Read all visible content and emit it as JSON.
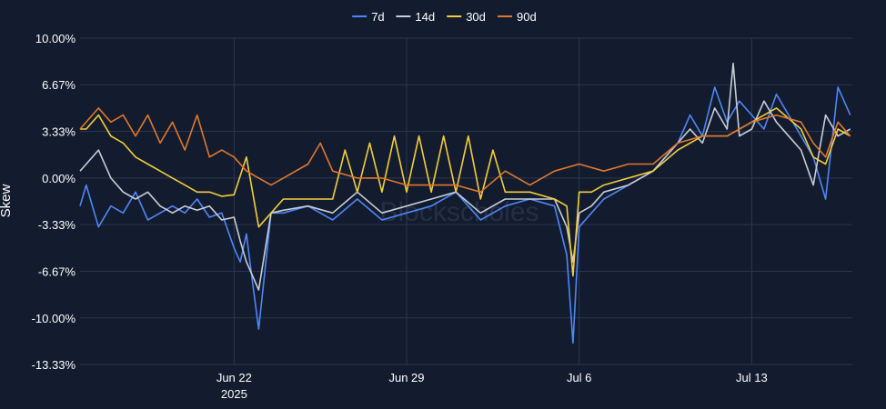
{
  "chart_data": {
    "type": "line",
    "xlabel": "",
    "ylabel": "Skew",
    "watermark": "Blockscholes",
    "y_unit": "%",
    "ylim": [
      -13.33,
      10.0
    ],
    "xlim": [
      "2025-06-15T18:00",
      "2025-07-17T02:00"
    ],
    "grid": true,
    "legend_position": "top-center",
    "y_ticks": [
      {
        "value": 10.0,
        "label": "10.00%"
      },
      {
        "value": 6.67,
        "label": "6.67%"
      },
      {
        "value": 3.33,
        "label": "3.33%"
      },
      {
        "value": 0.0,
        "label": "0.00%"
      },
      {
        "value": -3.33,
        "label": "-3.33%"
      },
      {
        "value": -6.67,
        "label": "-6.67%"
      },
      {
        "value": -10.0,
        "label": "-10.00%"
      },
      {
        "value": -13.33,
        "label": "-13.33%"
      }
    ],
    "x_ticks": [
      {
        "value": "2025-06-22",
        "label": "Jun 22",
        "sublabel": "2025"
      },
      {
        "value": "2025-06-29",
        "label": "Jun 29",
        "sublabel": ""
      },
      {
        "value": "2025-07-06",
        "label": "Jul 6",
        "sublabel": ""
      },
      {
        "value": "2025-07-13",
        "label": "Jul 13",
        "sublabel": ""
      }
    ],
    "series": [
      {
        "name": "7d",
        "color": "#4f86f7",
        "x": [
          "2025-06-15T18:00",
          "2025-06-16T00:00",
          "2025-06-16T12:00",
          "2025-06-17T00:00",
          "2025-06-17T12:00",
          "2025-06-18T00:00",
          "2025-06-18T12:00",
          "2025-06-19T00:00",
          "2025-06-19T12:00",
          "2025-06-20T00:00",
          "2025-06-20T12:00",
          "2025-06-21T00:00",
          "2025-06-21T12:00",
          "2025-06-22T00:00",
          "2025-06-22T06:00",
          "2025-06-22T12:00",
          "2025-06-22T18:00",
          "2025-06-23T00:00",
          "2025-06-23T12:00",
          "2025-06-24T00:00",
          "2025-06-25T00:00",
          "2025-06-26T00:00",
          "2025-06-27T00:00",
          "2025-06-28T00:00",
          "2025-06-29T00:00",
          "2025-06-30T00:00",
          "2025-07-01T00:00",
          "2025-07-02T00:00",
          "2025-07-03T00:00",
          "2025-07-04T00:00",
          "2025-07-05T00:00",
          "2025-07-05T12:00",
          "2025-07-05T18:00",
          "2025-07-06T00:00",
          "2025-07-06T12:00",
          "2025-07-07T00:00",
          "2025-07-08T00:00",
          "2025-07-09T00:00",
          "2025-07-10T00:00",
          "2025-07-10T12:00",
          "2025-07-11T00:00",
          "2025-07-11T12:00",
          "2025-07-12T00:00",
          "2025-07-12T12:00",
          "2025-07-13T00:00",
          "2025-07-13T12:00",
          "2025-07-14T00:00",
          "2025-07-14T12:00",
          "2025-07-15T00:00",
          "2025-07-15T12:00",
          "2025-07-16T00:00",
          "2025-07-16T12:00",
          "2025-07-17T00:00"
        ],
        "values": [
          -2.0,
          -0.5,
          -3.5,
          -2.0,
          -2.5,
          -1.0,
          -3.0,
          -2.5,
          -2.0,
          -2.5,
          -1.5,
          -2.8,
          -2.5,
          -5.0,
          -6.0,
          -4.0,
          -7.5,
          -10.8,
          -2.5,
          -2.5,
          -2.0,
          -3.0,
          -1.5,
          -3.0,
          -2.5,
          -2.0,
          -1.0,
          -3.0,
          -2.0,
          -1.5,
          -2.0,
          -5.5,
          -11.8,
          -3.5,
          -2.5,
          -1.5,
          -0.5,
          0.5,
          2.5,
          4.5,
          3.0,
          6.5,
          4.0,
          5.5,
          4.5,
          3.5,
          6.0,
          4.5,
          3.0,
          1.5,
          -1.5,
          6.5,
          4.5
        ]
      },
      {
        "name": "14d",
        "color": "#c8cdd6",
        "x": [
          "2025-06-15T18:00",
          "2025-06-16T00:00",
          "2025-06-16T12:00",
          "2025-06-17T00:00",
          "2025-06-17T12:00",
          "2025-06-18T00:00",
          "2025-06-18T12:00",
          "2025-06-19T00:00",
          "2025-06-19T12:00",
          "2025-06-20T00:00",
          "2025-06-20T12:00",
          "2025-06-21T00:00",
          "2025-06-21T12:00",
          "2025-06-22T00:00",
          "2025-06-22T06:00",
          "2025-06-22T12:00",
          "2025-06-22T18:00",
          "2025-06-23T00:00",
          "2025-06-23T12:00",
          "2025-06-24T00:00",
          "2025-06-25T00:00",
          "2025-06-26T00:00",
          "2025-06-27T00:00",
          "2025-06-28T00:00",
          "2025-06-29T00:00",
          "2025-06-30T00:00",
          "2025-07-01T00:00",
          "2025-07-02T00:00",
          "2025-07-03T00:00",
          "2025-07-04T00:00",
          "2025-07-05T00:00",
          "2025-07-05T12:00",
          "2025-07-05T18:00",
          "2025-07-06T00:00",
          "2025-07-06T12:00",
          "2025-07-07T00:00",
          "2025-07-08T00:00",
          "2025-07-09T00:00",
          "2025-07-10T00:00",
          "2025-07-10T12:00",
          "2025-07-11T00:00",
          "2025-07-11T12:00",
          "2025-07-12T00:00",
          "2025-07-12T06:00",
          "2025-07-12T12:00",
          "2025-07-13T00:00",
          "2025-07-13T12:00",
          "2025-07-14T00:00",
          "2025-07-14T12:00",
          "2025-07-15T00:00",
          "2025-07-15T12:00",
          "2025-07-16T00:00",
          "2025-07-16T12:00",
          "2025-07-17T00:00"
        ],
        "values": [
          0.5,
          1.0,
          2.0,
          0.0,
          -1.0,
          -1.5,
          -1.0,
          -2.0,
          -2.5,
          -2.0,
          -2.3,
          -2.0,
          -3.0,
          -2.8,
          -4.5,
          -6.0,
          -7.0,
          -8.0,
          -2.5,
          -2.3,
          -2.0,
          -2.5,
          -1.0,
          -2.5,
          -2.0,
          -1.5,
          -1.0,
          -2.5,
          -1.5,
          -1.5,
          -1.5,
          -3.5,
          -6.0,
          -2.5,
          -2.0,
          -1.0,
          -0.5,
          0.5,
          2.5,
          3.5,
          2.5,
          5.0,
          3.5,
          8.2,
          3.0,
          3.5,
          5.5,
          4.0,
          3.0,
          2.0,
          -0.5,
          4.5,
          3.0,
          3.5
        ]
      },
      {
        "name": "30d",
        "color": "#f2cd3c",
        "x": [
          "2025-06-15T18:00",
          "2025-06-16T00:00",
          "2025-06-16T12:00",
          "2025-06-17T00:00",
          "2025-06-17T12:00",
          "2025-06-18T00:00",
          "2025-06-18T12:00",
          "2025-06-19T00:00",
          "2025-06-19T12:00",
          "2025-06-20T00:00",
          "2025-06-20T12:00",
          "2025-06-21T00:00",
          "2025-06-21T12:00",
          "2025-06-22T00:00",
          "2025-06-22T12:00",
          "2025-06-23T00:00",
          "2025-06-23T12:00",
          "2025-06-24T00:00",
          "2025-06-25T00:00",
          "2025-06-26T00:00",
          "2025-06-26T12:00",
          "2025-06-27T00:00",
          "2025-06-27T12:00",
          "2025-06-28T00:00",
          "2025-06-28T12:00",
          "2025-06-29T00:00",
          "2025-06-29T12:00",
          "2025-06-30T00:00",
          "2025-06-30T12:00",
          "2025-07-01T00:00",
          "2025-07-01T12:00",
          "2025-07-02T00:00",
          "2025-07-02T12:00",
          "2025-07-03T00:00",
          "2025-07-04T00:00",
          "2025-07-05T00:00",
          "2025-07-05T12:00",
          "2025-07-05T18:00",
          "2025-07-06T00:00",
          "2025-07-06T12:00",
          "2025-07-07T00:00",
          "2025-07-08T00:00",
          "2025-07-09T00:00",
          "2025-07-10T00:00",
          "2025-07-11T00:00",
          "2025-07-12T00:00",
          "2025-07-13T00:00",
          "2025-07-14T00:00",
          "2025-07-15T00:00",
          "2025-07-15T12:00",
          "2025-07-16T00:00",
          "2025-07-16T12:00",
          "2025-07-17T00:00"
        ],
        "values": [
          3.5,
          3.5,
          4.5,
          3.0,
          2.5,
          1.5,
          1.0,
          0.5,
          0.0,
          -0.5,
          -1.0,
          -1.0,
          -1.3,
          -1.2,
          1.5,
          -3.5,
          -2.5,
          -1.5,
          -1.5,
          -1.5,
          2.0,
          -1.0,
          2.5,
          -1.0,
          3.0,
          -1.0,
          3.0,
          -1.0,
          3.0,
          -1.0,
          3.0,
          -1.5,
          2.0,
          -1.0,
          -1.0,
          -1.5,
          -2.0,
          -7.0,
          -1.0,
          -1.0,
          -0.5,
          0.0,
          0.5,
          2.0,
          3.0,
          3.0,
          4.0,
          5.0,
          3.5,
          1.5,
          1.0,
          3.5,
          3.0
        ]
      },
      {
        "name": "90d",
        "color": "#e0772e",
        "x": [
          "2025-06-15T18:00",
          "2025-06-16T12:00",
          "2025-06-17T00:00",
          "2025-06-17T12:00",
          "2025-06-18T00:00",
          "2025-06-18T12:00",
          "2025-06-19T00:00",
          "2025-06-19T12:00",
          "2025-06-20T00:00",
          "2025-06-20T12:00",
          "2025-06-21T00:00",
          "2025-06-21T12:00",
          "2025-06-22T00:00",
          "2025-06-22T12:00",
          "2025-06-23T00:00",
          "2025-06-23T12:00",
          "2025-06-24T00:00",
          "2025-06-25T00:00",
          "2025-06-25T12:00",
          "2025-06-26T00:00",
          "2025-06-27T00:00",
          "2025-06-28T00:00",
          "2025-06-29T00:00",
          "2025-06-30T00:00",
          "2025-07-01T00:00",
          "2025-07-02T00:00",
          "2025-07-03T00:00",
          "2025-07-04T00:00",
          "2025-07-05T00:00",
          "2025-07-06T00:00",
          "2025-07-07T00:00",
          "2025-07-08T00:00",
          "2025-07-09T00:00",
          "2025-07-10T00:00",
          "2025-07-11T00:00",
          "2025-07-12T00:00",
          "2025-07-13T00:00",
          "2025-07-14T00:00",
          "2025-07-15T00:00",
          "2025-07-15T12:00",
          "2025-07-16T00:00",
          "2025-07-16T12:00",
          "2025-07-17T00:00"
        ],
        "values": [
          3.5,
          5.0,
          4.0,
          4.5,
          3.0,
          4.5,
          2.5,
          4.0,
          2.0,
          4.5,
          1.5,
          2.0,
          1.5,
          0.5,
          0.0,
          -0.5,
          0.0,
          1.0,
          2.5,
          0.5,
          0.0,
          0.0,
          -0.5,
          -0.5,
          -0.5,
          -1.0,
          0.5,
          -0.5,
          0.5,
          1.0,
          0.5,
          1.0,
          1.0,
          2.5,
          3.0,
          3.0,
          4.0,
          4.5,
          4.0,
          2.5,
          1.5,
          4.0,
          3.0
        ]
      }
    ]
  }
}
